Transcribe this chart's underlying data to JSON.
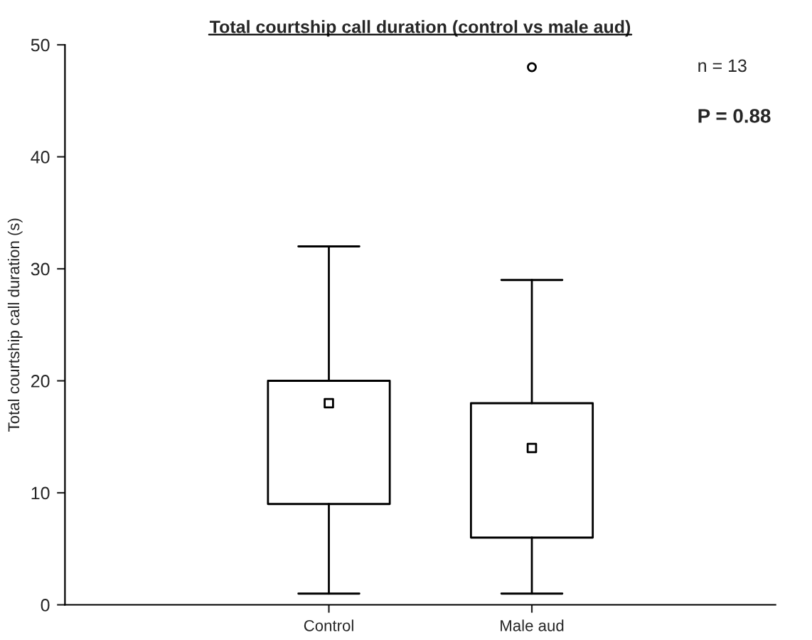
{
  "chart_data": {
    "type": "box",
    "title": "Total courtship call duration (control vs male aud)",
    "ylabel": "Total courtship call duration (s)",
    "categories": [
      "Control",
      "Male aud"
    ],
    "boxes": [
      {
        "low": 1,
        "q1": 9,
        "median": 18,
        "q3": 20,
        "high": 32
      },
      {
        "low": 1,
        "q1": 6,
        "median": 14,
        "q3": 18,
        "high": 29,
        "outliers": [
          48
        ]
      }
    ],
    "ylim": [
      0,
      50
    ],
    "yticks": [
      0,
      10,
      20,
      30,
      40,
      50
    ],
    "grid": false,
    "marker": "square",
    "annotations": [
      "n = 13",
      "P = 0.88"
    ]
  }
}
